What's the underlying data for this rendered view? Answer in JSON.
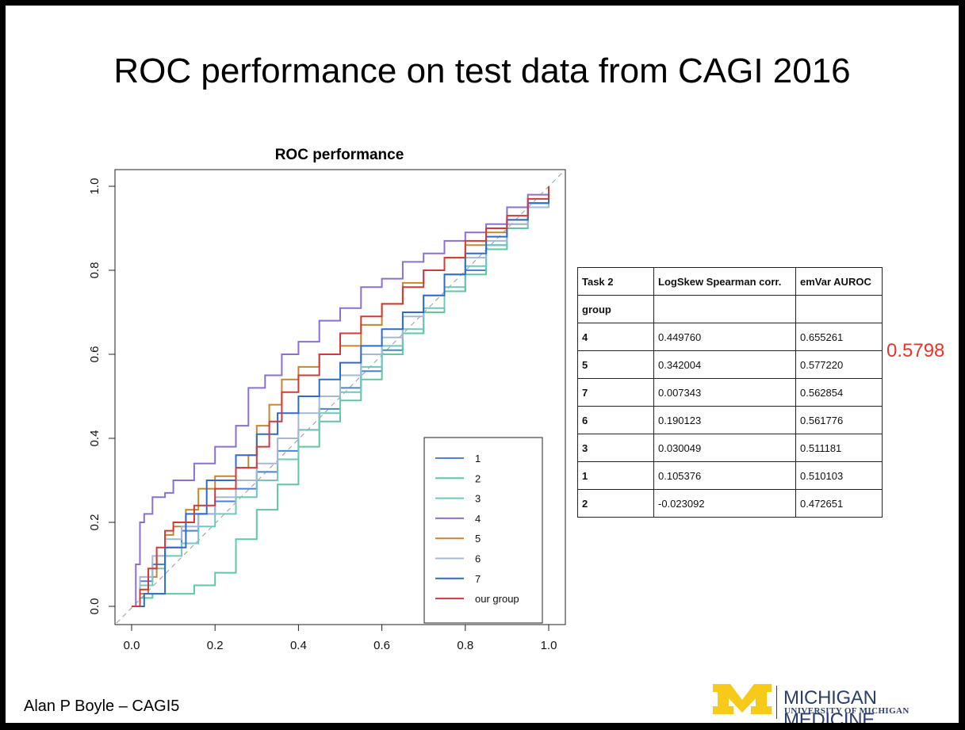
{
  "slide": {
    "title": "ROC performance on test data from CAGI 2016"
  },
  "chart_data": {
    "type": "line",
    "title": "ROC performance",
    "xlabel": "",
    "ylabel": "",
    "xlim": [
      0,
      1
    ],
    "ylim": [
      0,
      1
    ],
    "x_ticks": [
      "0.0",
      "0.2",
      "0.4",
      "0.6",
      "0.8",
      "1.0"
    ],
    "y_ticks": [
      "0.0",
      "0.2",
      "0.4",
      "0.6",
      "0.8",
      "1.0"
    ],
    "legend_position": "bottom-right",
    "diagonal_reference": true,
    "series": [
      {
        "name": "1",
        "color": "#4b82d8",
        "x": [
          0,
          0.02,
          0.05,
          0.08,
          0.12,
          0.16,
          0.2,
          0.25,
          0.3,
          0.35,
          0.4,
          0.45,
          0.5,
          0.55,
          0.6,
          0.65,
          0.7,
          0.75,
          0.8,
          0.85,
          0.9,
          0.95,
          1
        ],
        "y": [
          0,
          0.06,
          0.1,
          0.14,
          0.18,
          0.22,
          0.25,
          0.28,
          0.32,
          0.37,
          0.42,
          0.47,
          0.52,
          0.56,
          0.61,
          0.65,
          0.7,
          0.75,
          0.8,
          0.86,
          0.91,
          0.95,
          1
        ]
      },
      {
        "name": "2",
        "color": "#5ec9a0",
        "x": [
          0,
          0.02,
          0.05,
          0.1,
          0.15,
          0.2,
          0.25,
          0.3,
          0.35,
          0.4,
          0.45,
          0.5,
          0.55,
          0.6,
          0.65,
          0.7,
          0.75,
          0.8,
          0.85,
          0.9,
          0.95,
          1
        ],
        "y": [
          0,
          0.02,
          0.03,
          0.03,
          0.05,
          0.08,
          0.16,
          0.23,
          0.29,
          0.38,
          0.44,
          0.49,
          0.54,
          0.6,
          0.65,
          0.7,
          0.75,
          0.79,
          0.85,
          0.9,
          0.95,
          1
        ]
      },
      {
        "name": "3",
        "color": "#6fc7c0",
        "x": [
          0,
          0.02,
          0.05,
          0.08,
          0.12,
          0.16,
          0.2,
          0.25,
          0.3,
          0.35,
          0.4,
          0.45,
          0.5,
          0.55,
          0.6,
          0.65,
          0.7,
          0.75,
          0.8,
          0.85,
          0.9,
          0.95,
          1
        ],
        "y": [
          0,
          0.05,
          0.09,
          0.12,
          0.15,
          0.19,
          0.22,
          0.26,
          0.3,
          0.35,
          0.42,
          0.46,
          0.51,
          0.57,
          0.62,
          0.66,
          0.71,
          0.76,
          0.81,
          0.86,
          0.92,
          0.96,
          1
        ]
      },
      {
        "name": "4",
        "color": "#8d6fd2",
        "x": [
          0,
          0.01,
          0.02,
          0.03,
          0.05,
          0.08,
          0.1,
          0.15,
          0.2,
          0.25,
          0.28,
          0.32,
          0.36,
          0.4,
          0.45,
          0.5,
          0.55,
          0.6,
          0.65,
          0.7,
          0.75,
          0.8,
          0.85,
          0.9,
          0.95,
          1
        ],
        "y": [
          0,
          0.1,
          0.2,
          0.22,
          0.26,
          0.27,
          0.3,
          0.34,
          0.38,
          0.43,
          0.52,
          0.55,
          0.6,
          0.63,
          0.68,
          0.71,
          0.76,
          0.78,
          0.82,
          0.84,
          0.87,
          0.89,
          0.91,
          0.95,
          0.98,
          1
        ]
      },
      {
        "name": "5",
        "color": "#c8862a",
        "x": [
          0,
          0.02,
          0.04,
          0.06,
          0.08,
          0.1,
          0.13,
          0.16,
          0.2,
          0.25,
          0.28,
          0.3,
          0.33,
          0.36,
          0.4,
          0.45,
          0.5,
          0.55,
          0.6,
          0.65,
          0.7,
          0.75,
          0.8,
          0.85,
          0.9,
          0.95,
          1
        ],
        "y": [
          0,
          0.03,
          0.07,
          0.12,
          0.17,
          0.19,
          0.23,
          0.28,
          0.31,
          0.33,
          0.36,
          0.43,
          0.48,
          0.54,
          0.57,
          0.6,
          0.62,
          0.67,
          0.72,
          0.77,
          0.8,
          0.83,
          0.86,
          0.89,
          0.92,
          0.96,
          1
        ]
      },
      {
        "name": "6",
        "color": "#a3b8d6",
        "x": [
          0,
          0.02,
          0.05,
          0.08,
          0.12,
          0.16,
          0.2,
          0.25,
          0.3,
          0.35,
          0.4,
          0.45,
          0.5,
          0.55,
          0.6,
          0.65,
          0.7,
          0.75,
          0.8,
          0.85,
          0.9,
          0.95,
          1
        ],
        "y": [
          0,
          0.07,
          0.12,
          0.16,
          0.19,
          0.22,
          0.26,
          0.3,
          0.34,
          0.4,
          0.46,
          0.5,
          0.55,
          0.6,
          0.64,
          0.69,
          0.74,
          0.79,
          0.83,
          0.87,
          0.91,
          0.95,
          1
        ]
      },
      {
        "name": "7",
        "color": "#2d6bd0",
        "x": [
          0,
          0.03,
          0.08,
          0.13,
          0.18,
          0.25,
          0.3,
          0.35,
          0.4,
          0.45,
          0.5,
          0.55,
          0.6,
          0.65,
          0.7,
          0.75,
          0.8,
          0.85,
          0.9,
          0.95,
          1
        ],
        "y": [
          0,
          0.03,
          0.14,
          0.22,
          0.3,
          0.36,
          0.41,
          0.46,
          0.5,
          0.54,
          0.58,
          0.62,
          0.66,
          0.7,
          0.74,
          0.79,
          0.84,
          0.88,
          0.92,
          0.96,
          1
        ]
      },
      {
        "name": "our group",
        "color": "#d13a3a",
        "x": [
          0,
          0.02,
          0.04,
          0.06,
          0.08,
          0.1,
          0.15,
          0.2,
          0.25,
          0.3,
          0.33,
          0.36,
          0.4,
          0.45,
          0.5,
          0.55,
          0.6,
          0.65,
          0.7,
          0.75,
          0.8,
          0.85,
          0.9,
          0.95,
          1
        ],
        "y": [
          0,
          0.04,
          0.09,
          0.14,
          0.18,
          0.2,
          0.24,
          0.28,
          0.33,
          0.38,
          0.44,
          0.51,
          0.55,
          0.6,
          0.65,
          0.69,
          0.72,
          0.76,
          0.8,
          0.83,
          0.87,
          0.9,
          0.93,
          0.97,
          1
        ]
      }
    ]
  },
  "table": {
    "header": [
      "Task 2",
      "LogSkew Spearman corr.",
      "emVar AUROC"
    ],
    "subheader": [
      "group",
      "",
      ""
    ],
    "rows": [
      [
        "4",
        "0.449760",
        "0.655261"
      ],
      [
        "5",
        "0.342004",
        "0.577220"
      ],
      [
        "7",
        "0.007343",
        "0.562854"
      ],
      [
        "6",
        "0.190123",
        "0.561776"
      ],
      [
        "3",
        "0.030049",
        "0.511181"
      ],
      [
        "1",
        "0.105376",
        "0.510103"
      ],
      [
        "2",
        "-0.023092",
        "0.472651"
      ]
    ]
  },
  "highlight_value": "0.5798",
  "footer": {
    "credit": "Alan P Boyle – CAGI5",
    "logo_line1": "MICHIGAN MEDICINE",
    "logo_line2": "UNIVERSITY OF MICHIGAN"
  },
  "colors": {
    "highlight": "#e8352a",
    "logo_maize": "#f7c918",
    "logo_blue": "#2c3e70"
  }
}
